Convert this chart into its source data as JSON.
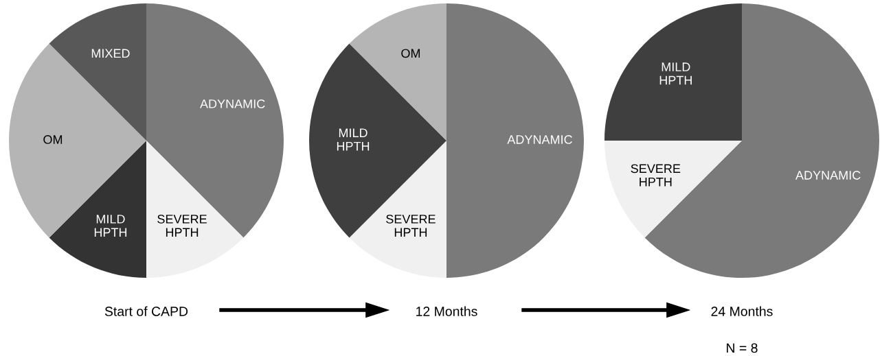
{
  "chart_data": [
    {
      "type": "pie",
      "title": "Start of CAPD",
      "categories": [
        "ADYNAMIC",
        "SEVERE HPTH",
        "MILD HPTH",
        "OM",
        "MIXED"
      ],
      "values": [
        37.5,
        12.5,
        12.5,
        25,
        12.5
      ],
      "colors": [
        "#7a7a7a",
        "#f0f0f0",
        "#333333",
        "#b5b5b5",
        "#585858"
      ]
    },
    {
      "type": "pie",
      "title": "12 Months",
      "categories": [
        "ADYNAMIC",
        "SEVERE HPTH",
        "MILD HPTH",
        "OM"
      ],
      "values": [
        50,
        12.5,
        25,
        12.5
      ],
      "colors": [
        "#7a7a7a",
        "#f0f0f0",
        "#3f3f3f",
        "#b5b5b5"
      ]
    },
    {
      "type": "pie",
      "title": "24 Months",
      "categories": [
        "ADYNAMIC",
        "SEVERE HPTH",
        "MILD HPTH"
      ],
      "values": [
        62.5,
        12.5,
        25
      ],
      "colors": [
        "#7a7a7a",
        "#f0f0f0",
        "#3f3f3f"
      ],
      "annotations": [
        "N = 8"
      ]
    }
  ]
}
